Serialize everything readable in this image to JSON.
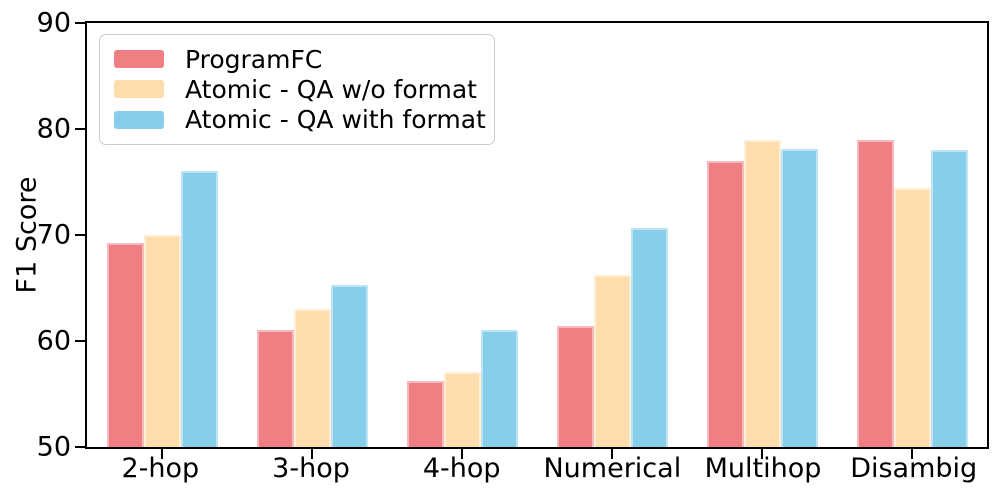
{
  "chart_data": {
    "type": "bar",
    "title": "",
    "xlabel": "",
    "ylabel": "F1 Score",
    "ylim": [
      50,
      90
    ],
    "yticks": [
      50,
      60,
      70,
      80,
      90
    ],
    "grid": false,
    "legend_position": "upper left",
    "categories": [
      "2-hop",
      "3-hop",
      "4-hop",
      "Numerical",
      "Multihop",
      "Disambig"
    ],
    "series": [
      {
        "name": "ProgramFC",
        "color": "#EF7F82",
        "edge_color": "#F7B9BB",
        "values": [
          69.2,
          61.0,
          56.2,
          61.4,
          77.0,
          79.0
        ]
      },
      {
        "name": "Atomic - QA w/o format",
        "color": "#FDDDAC",
        "edge_color": "#FEEED6",
        "values": [
          70.0,
          63.0,
          57.1,
          66.2,
          79.0,
          74.4
        ]
      },
      {
        "name": "Atomic - QA with format",
        "color": "#87CEEA",
        "edge_color": "#BCE4F4",
        "values": [
          76.0,
          65.3,
          61.0,
          70.7,
          78.1,
          78.0
        ]
      }
    ]
  }
}
